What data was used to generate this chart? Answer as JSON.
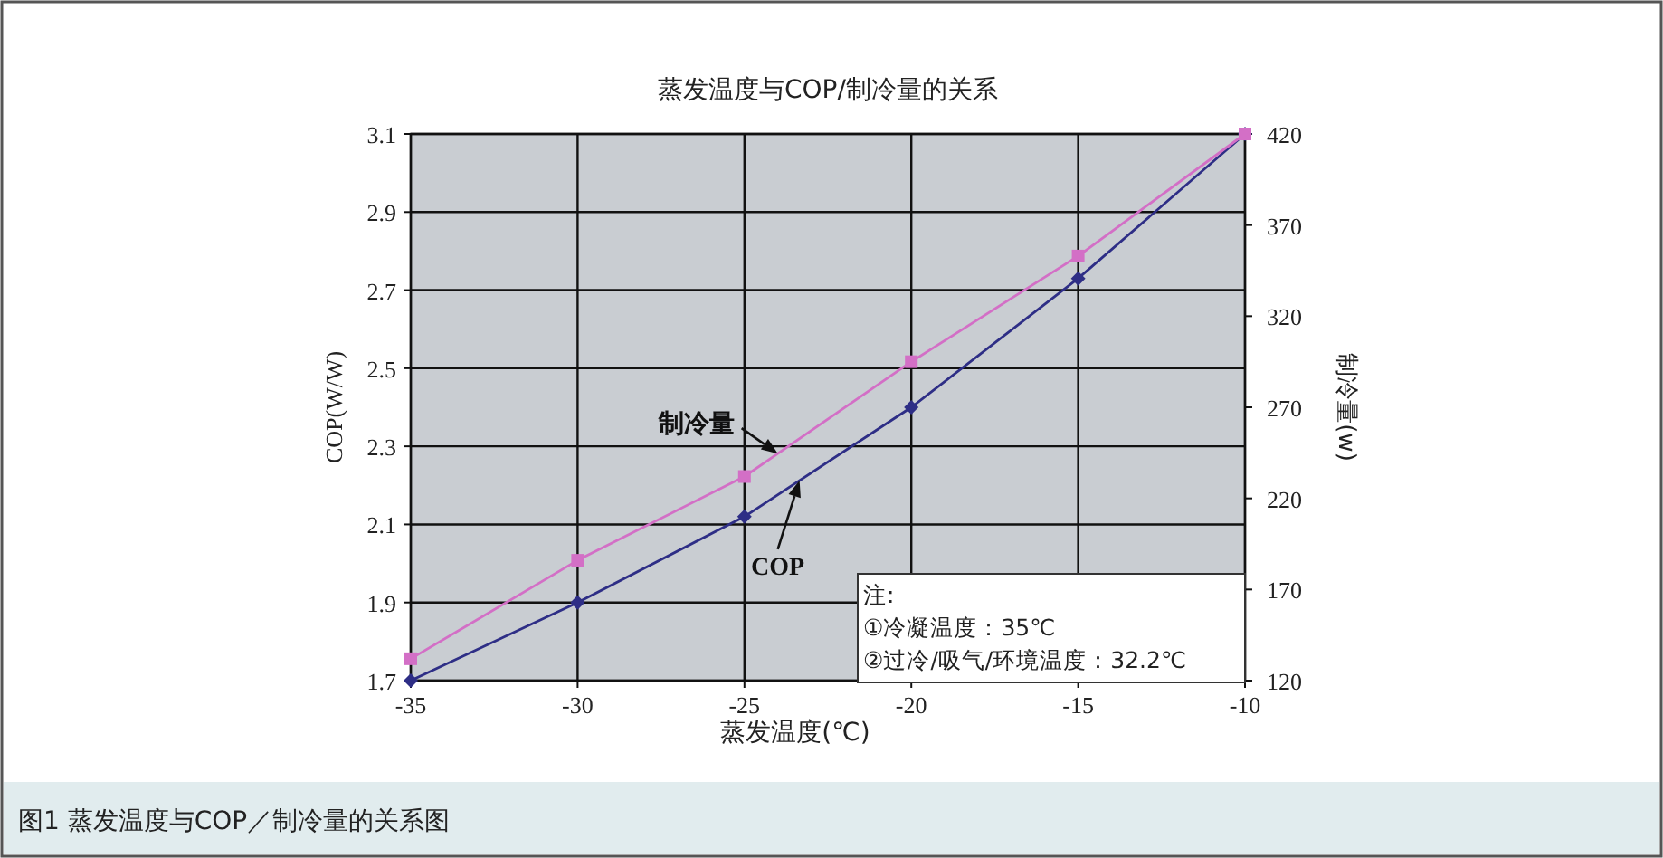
{
  "chart_data": {
    "type": "line",
    "title": "蒸发温度与COP/制冷量的关系",
    "xlabel": "蒸发温度(℃)",
    "ylabel": "COP(W/W)",
    "y2label": "制冷量(w)",
    "x": [
      -35,
      -30,
      -25,
      -20,
      -15,
      -10
    ],
    "series": [
      {
        "name": "COP",
        "color": "#2e2e86",
        "marker": "diamond",
        "values": [
          1.7,
          1.9,
          2.12,
          2.4,
          2.73,
          3.1
        ]
      },
      {
        "name": "制冷量",
        "color": "#d36fc6",
        "marker": "square",
        "axis": "y2",
        "values": [
          132,
          186,
          232,
          295,
          353,
          420
        ]
      }
    ],
    "xlim": [
      -35,
      -10
    ],
    "xticks": [
      -35,
      -30,
      -25,
      -20,
      -15,
      -10
    ],
    "ylim": [
      1.7,
      3.1
    ],
    "yticks": [
      1.7,
      1.9,
      2.1,
      2.3,
      2.5,
      2.7,
      2.9,
      3.1
    ],
    "y2lim": [
      120,
      420
    ],
    "y2ticks": [
      120,
      170,
      220,
      270,
      320,
      370,
      420
    ],
    "grid": true,
    "line_style": "solid",
    "annotations": [
      "注:",
      "①冷凝温度：35℃",
      "②过冷/吸气/环境温度：32.2℃",
      "图1 蒸发温度与COP／制冷量的关系图"
    ]
  }
}
